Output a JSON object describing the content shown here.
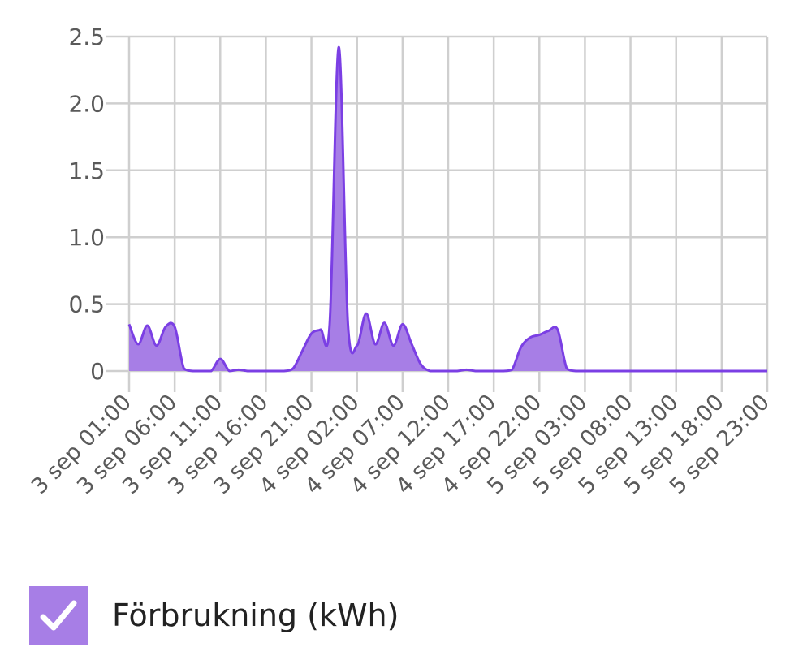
{
  "chart_data": {
    "type": "area",
    "title": "",
    "xlabel": "",
    "ylabel": "",
    "ylim": [
      0,
      2.5
    ],
    "y_ticks": [
      "0",
      "0.5",
      "1.0",
      "1.5",
      "2.0",
      "2.5"
    ],
    "x_tick_labels": [
      "3 sep 01:00",
      "3 sep 06:00",
      "3 sep 11:00",
      "3 sep 16:00",
      "3 sep 21:00",
      "4 sep 02:00",
      "4 sep 07:00",
      "4 sep 12:00",
      "4 sep 17:00",
      "4 sep 22:00",
      "5 sep 03:00",
      "5 sep 08:00",
      "5 sep 13:00",
      "5 sep 18:00",
      "5 sep 23:00"
    ],
    "grid": true,
    "legend_position": "bottom-left",
    "series": [
      {
        "name": "Förbrukning (kWh)",
        "color": "#7b3fe4",
        "fill": "#a77ee6",
        "x": [
          "3 sep 01:00",
          "3 sep 02:00",
          "3 sep 03:00",
          "3 sep 04:00",
          "3 sep 05:00",
          "3 sep 06:00",
          "3 sep 07:00",
          "3 sep 08:00",
          "3 sep 09:00",
          "3 sep 10:00",
          "3 sep 11:00",
          "3 sep 12:00",
          "3 sep 13:00",
          "3 sep 14:00",
          "3 sep 15:00",
          "3 sep 16:00",
          "3 sep 17:00",
          "3 sep 18:00",
          "3 sep 19:00",
          "3 sep 20:00",
          "3 sep 21:00",
          "3 sep 22:00",
          "3 sep 23:00",
          "4 sep 00:00",
          "4 sep 01:00",
          "4 sep 02:00",
          "4 sep 03:00",
          "4 sep 04:00",
          "4 sep 05:00",
          "4 sep 06:00",
          "4 sep 07:00",
          "4 sep 08:00",
          "4 sep 09:00",
          "4 sep 10:00",
          "4 sep 11:00",
          "4 sep 12:00",
          "4 sep 13:00",
          "4 sep 14:00",
          "4 sep 15:00",
          "4 sep 16:00",
          "4 sep 17:00",
          "4 sep 18:00",
          "4 sep 19:00",
          "4 sep 20:00",
          "4 sep 21:00",
          "4 sep 22:00",
          "4 sep 23:00",
          "5 sep 00:00",
          "5 sep 01:00",
          "5 sep 02:00",
          "5 sep 03:00",
          "5 sep 04:00",
          "5 sep 05:00",
          "5 sep 06:00",
          "5 sep 07:00",
          "5 sep 08:00",
          "5 sep 09:00",
          "5 sep 10:00",
          "5 sep 11:00",
          "5 sep 12:00",
          "5 sep 13:00",
          "5 sep 14:00",
          "5 sep 15:00",
          "5 sep 16:00",
          "5 sep 17:00",
          "5 sep 18:00",
          "5 sep 19:00",
          "5 sep 20:00",
          "5 sep 21:00",
          "5 sep 22:00",
          "5 sep 23:00"
        ],
        "values": [
          0.35,
          0.2,
          0.34,
          0.19,
          0.33,
          0.33,
          0.02,
          0,
          0,
          0,
          0.09,
          0,
          0.01,
          0,
          0,
          0,
          0,
          0,
          0.02,
          0.15,
          0.28,
          0.31,
          0.35,
          2.42,
          0.35,
          0.19,
          0.43,
          0.2,
          0.36,
          0.19,
          0.35,
          0.2,
          0.05,
          0,
          0,
          0,
          0,
          0.01,
          0,
          0,
          0,
          0,
          0.01,
          0.18,
          0.25,
          0.27,
          0.3,
          0.31,
          0.02,
          0,
          0,
          0,
          0,
          0,
          0,
          0,
          0,
          0,
          0,
          0,
          0,
          0,
          0,
          0,
          0,
          0,
          0,
          0,
          0,
          0,
          0
        ]
      }
    ]
  }
}
